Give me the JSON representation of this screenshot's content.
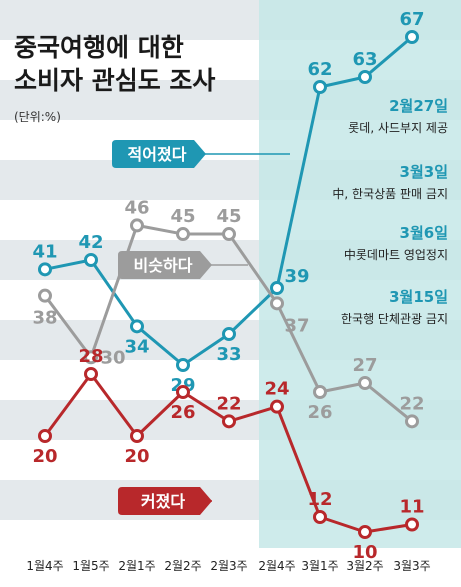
{
  "chart_data": {
    "type": "line",
    "title_lines": [
      "중국여행에 대한",
      "소비자 관심도 조사"
    ],
    "unit": "(단위:%)",
    "categories": [
      "1월4주",
      "1월5주",
      "2월1주",
      "2월2주",
      "2월3주",
      "2월4주",
      "3월1주",
      "3월2주",
      "3월3주"
    ],
    "series": [
      {
        "name": "적어졌다",
        "color": "#1f97b3",
        "values": [
          41,
          42,
          34,
          29,
          33,
          39,
          62,
          63,
          67
        ]
      },
      {
        "name": "비슷하다",
        "color": "#9c9c9c",
        "values": [
          38,
          30,
          46,
          45,
          45,
          37,
          26,
          27,
          22
        ]
      },
      {
        "name": "커졌다",
        "color": "#b8282b",
        "values": [
          20,
          28,
          20,
          26,
          22,
          24,
          12,
          10,
          11
        ]
      }
    ],
    "annotations": [
      {
        "date": "2월27일",
        "text": "롯데, 사드부지 제공"
      },
      {
        "date": "3월3일",
        "text": "中, 한국상품 판매 금지"
      },
      {
        "date": "3월6일",
        "text": "中롯데마트 영업정지"
      },
      {
        "date": "3월15일",
        "text": "한국행 단체관광 금지"
      }
    ],
    "highlight_from_category": "2월4주",
    "colors": {
      "band": "#e4e9ec",
      "highlight": "#c5e7e7",
      "annotation_date": "#1f97b3"
    }
  }
}
